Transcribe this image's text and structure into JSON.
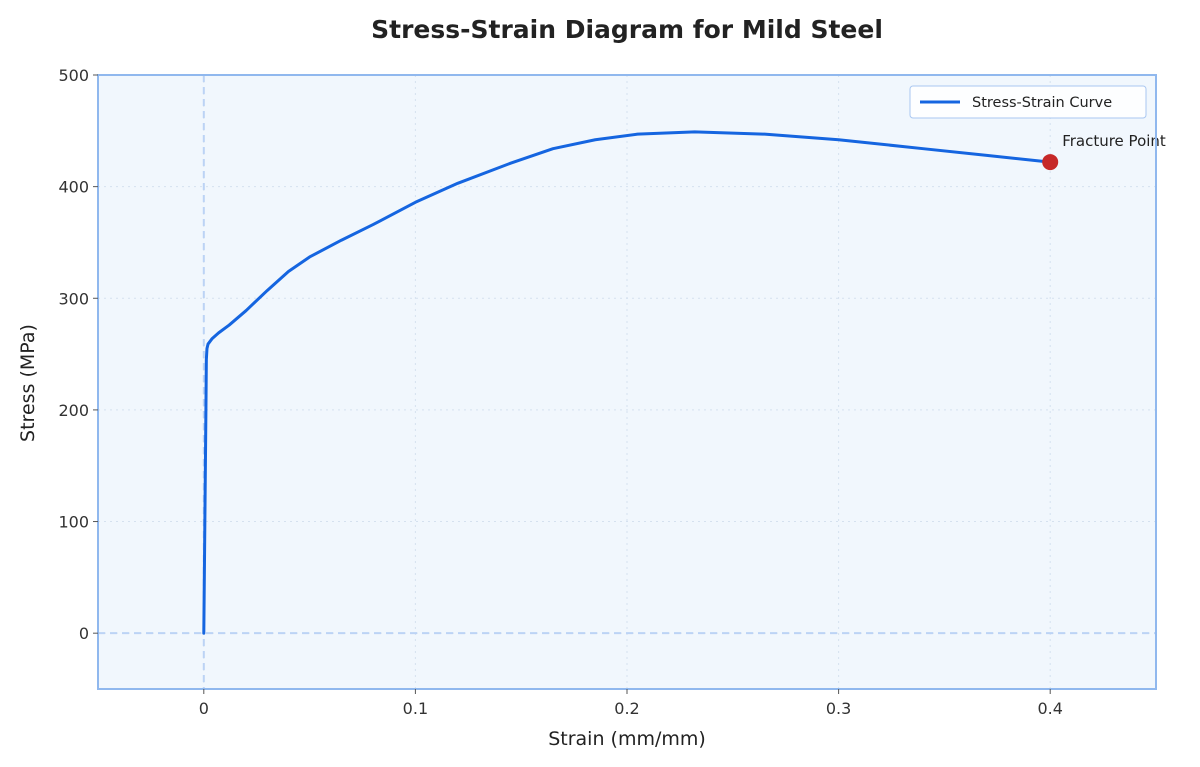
{
  "chart_data": {
    "type": "line",
    "title": "Stress-Strain Diagram for Mild Steel",
    "xlabel": "Strain (mm/mm)",
    "ylabel": "Stress (MPa)",
    "xlim": [
      -0.05,
      0.45
    ],
    "ylim": [
      -50,
      500
    ],
    "x_ticks": [
      0,
      0.1,
      0.2,
      0.3,
      0.4
    ],
    "x_tick_labels": [
      "0",
      "0.1",
      "0.2",
      "0.3",
      "0.4"
    ],
    "y_ticks": [
      0,
      100,
      200,
      300,
      400,
      500
    ],
    "y_tick_labels": [
      "0",
      "100",
      "200",
      "300",
      "400",
      "500"
    ],
    "grid": true,
    "reference_lines": {
      "x": 0,
      "y": 0
    },
    "legend_position": "top-right",
    "series": [
      {
        "name": "Stress-Strain Curve",
        "color": "#1565e0",
        "x": [
          0,
          0.0005,
          0.001,
          0.0012,
          0.0015,
          0.002,
          0.004,
          0.007,
          0.012,
          0.02,
          0.03,
          0.04,
          0.05,
          0.065,
          0.08,
          0.1,
          0.12,
          0.145,
          0.165,
          0.185,
          0.205,
          0.232,
          0.265,
          0.3,
          0.34,
          0.37,
          0.4
        ],
        "y": [
          0,
          100,
          200,
          245,
          255,
          259,
          264,
          269,
          276,
          289,
          307,
          324,
          337,
          352,
          366,
          386,
          403,
          421,
          434,
          442,
          447,
          449,
          447,
          442,
          434,
          428,
          422
        ]
      }
    ],
    "annotations": [
      {
        "text": "Fracture Point",
        "x": 0.4,
        "y": 422,
        "marker_color": "#c62828"
      }
    ],
    "colors": {
      "plot_background": "#f1f7fd",
      "frame": "#90b8ee",
      "grid": "#d5e1ef",
      "reference_line": "#bcd3f5"
    }
  }
}
